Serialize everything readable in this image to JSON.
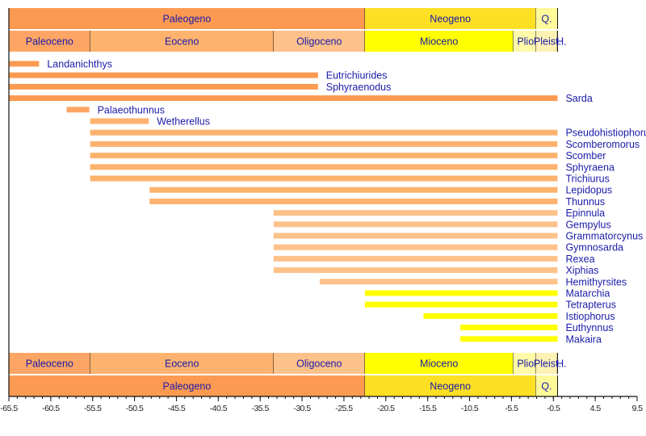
{
  "chart_data": {
    "type": "timeline",
    "title": "",
    "xlabel": "",
    "ylabel": "",
    "xlim": [
      -65.5,
      9.5
    ],
    "x_ticks": [
      -65.5,
      -60.5,
      -55.5,
      -50.5,
      -45.5,
      -40.5,
      -35.5,
      -30.5,
      -25.5,
      -20.5,
      -15.5,
      -10.5,
      -5.5,
      -0.5,
      4.5,
      9.5
    ],
    "x_tick_labels": [
      "-65.5",
      "-60.5",
      "-55.5",
      "-50.5",
      "-45.5",
      "-40.5",
      "-35.5",
      "-30.5",
      "-25.5",
      "-20.5",
      "-15.5",
      "-10.5",
      "-5.5",
      "-0.5",
      "4.5",
      "9.5"
    ],
    "minor_tick_step": 1,
    "periods": [
      {
        "name": "Paleogeno",
        "start": -65.5,
        "end": -23.0,
        "color": "#fd9a52"
      },
      {
        "name": "Neogeno",
        "start": -23.0,
        "end": -2.6,
        "color": "#fde024"
      },
      {
        "name": "Q.",
        "start": -2.6,
        "end": 0.0,
        "color": "#fefa9a"
      }
    ],
    "epochs": [
      {
        "name": "Paleoceno",
        "start": -65.5,
        "end": -55.8,
        "color": "#fda564"
      },
      {
        "name": "Eoceno",
        "start": -55.8,
        "end": -33.9,
        "color": "#fdb36e"
      },
      {
        "name": "Oligoceno",
        "start": -33.9,
        "end": -23.0,
        "color": "#fdc18a"
      },
      {
        "name": "Mioceno",
        "start": -23.0,
        "end": -5.3,
        "color": "#ffff00"
      },
      {
        "name": "Plio.",
        "start": -5.3,
        "end": -2.6,
        "color": "#fffaa8"
      },
      {
        "name": "Pleist.",
        "start": -2.6,
        "end": -0.01,
        "color": "#fdf2b4"
      },
      {
        "name": "H.",
        "start": -0.01,
        "end": 0.0,
        "color": "#fdf2e4"
      }
    ],
    "series": [
      {
        "name": "Landanichthys",
        "start": -65.5,
        "end": -61.9,
        "color": "#fd9a52"
      },
      {
        "name": "Eutrichiurides",
        "start": -65.5,
        "end": -28.6,
        "color": "#fd9a52"
      },
      {
        "name": "Sphyraenodus",
        "start": -65.5,
        "end": -28.6,
        "color": "#fd9a52"
      },
      {
        "name": "Sarda",
        "start": -65.5,
        "end": 0.0,
        "color": "#fd9a52"
      },
      {
        "name": "Palaeothunnus",
        "start": -58.6,
        "end": -55.9,
        "color": "#fda564"
      },
      {
        "name": "Wetherellus",
        "start": -55.8,
        "end": -48.8,
        "color": "#fdb36e"
      },
      {
        "name": "Pseudohistiophorus",
        "start": -55.8,
        "end": 0.0,
        "color": "#fdb36e"
      },
      {
        "name": "Scomberomorus",
        "start": -55.8,
        "end": 0.0,
        "color": "#fdb36e"
      },
      {
        "name": "Scomber",
        "start": -55.8,
        "end": 0.0,
        "color": "#fdb36e"
      },
      {
        "name": "Sphyraena",
        "start": -55.8,
        "end": 0.0,
        "color": "#fdb36e"
      },
      {
        "name": "Trichiurus",
        "start": -55.8,
        "end": 0.0,
        "color": "#fdb36e"
      },
      {
        "name": "Lepidopus",
        "start": -48.7,
        "end": 0.0,
        "color": "#fdb36e"
      },
      {
        "name": "Thunnus",
        "start": -48.7,
        "end": 0.0,
        "color": "#fdb36e"
      },
      {
        "name": "Epinnula",
        "start": -33.9,
        "end": 0.0,
        "color": "#fdc18a"
      },
      {
        "name": "Gempylus",
        "start": -33.9,
        "end": 0.0,
        "color": "#fdc18a"
      },
      {
        "name": "Grammatorcynus",
        "start": -33.9,
        "end": 0.0,
        "color": "#fdc18a"
      },
      {
        "name": "Gymnosarda",
        "start": -33.9,
        "end": 0.0,
        "color": "#fdc18a"
      },
      {
        "name": "Rexea",
        "start": -33.9,
        "end": 0.0,
        "color": "#fdc18a"
      },
      {
        "name": "Xiphias",
        "start": -33.9,
        "end": 0.0,
        "color": "#fdc18a"
      },
      {
        "name": "Hemithyrsites",
        "start": -28.4,
        "end": 0.0,
        "color": "#fdc18a"
      },
      {
        "name": "Matarchia",
        "start": -23.0,
        "end": 0.0,
        "color": "#ffff00"
      },
      {
        "name": "Tetrapterus",
        "start": -23.0,
        "end": 0.0,
        "color": "#ffff00"
      },
      {
        "name": "Istiophorus",
        "start": -16.0,
        "end": 0.0,
        "color": "#ffff00"
      },
      {
        "name": "Euthynnus",
        "start": -11.6,
        "end": 0.0,
        "color": "#ffff00"
      },
      {
        "name": "Makaira",
        "start": -11.6,
        "end": 0.0,
        "color": "#ffff00"
      }
    ],
    "label_color": "#1a1aa8",
    "grid": false,
    "legend": "none"
  }
}
